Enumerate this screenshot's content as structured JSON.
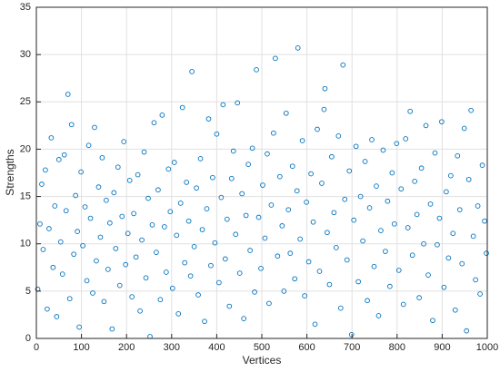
{
  "chart_data": {
    "type": "scatter",
    "xlabel": "Vertices",
    "ylabel": "Strengths",
    "xlim": [
      0,
      1000
    ],
    "ylim": [
      0,
      35
    ],
    "xticks": [
      0,
      100,
      200,
      300,
      400,
      500,
      600,
      700,
      800,
      900,
      1000
    ],
    "yticks": [
      0,
      5,
      10,
      15,
      20,
      25,
      30,
      35
    ],
    "grid": true,
    "marker": "open-circle",
    "series": [
      {
        "color": "#0072BD",
        "x": [
          3,
          8,
          12,
          15,
          20,
          24,
          28,
          33,
          37,
          41,
          45,
          50,
          54,
          58,
          62,
          66,
          70,
          74,
          78,
          83,
          87,
          91,
          95,
          99,
          103,
          108,
          112,
          116,
          120,
          125,
          129,
          133,
          138,
          142,
          146,
          150,
          155,
          159,
          163,
          168,
          172,
          176,
          181,
          185,
          190,
          194,
          198,
          203,
          207,
          212,
          216,
          221,
          225,
          230,
          234,
          239,
          243,
          248,
          252,
          257,
          261,
          266,
          270,
          275,
          279,
          284,
          288,
          293,
          297,
          302,
          306,
          311,
          315,
          320,
          324,
          329,
          333,
          338,
          342,
          345,
          350,
          355,
          359,
          364,
          368,
          373,
          378,
          382,
          387,
          391,
          396,
          400,
          405,
          410,
          414,
          419,
          423,
          428,
          433,
          437,
          442,
          446,
          451,
          456,
          460,
          465,
          470,
          474,
          479,
          484,
          488,
          493,
          498,
          502,
          507,
          512,
          516,
          521,
          526,
          530,
          535,
          540,
          545,
          549,
          554,
          559,
          563,
          568,
          573,
          578,
          580,
          585,
          590,
          595,
          599,
          604,
          609,
          614,
          618,
          623,
          628,
          633,
          638,
          640,
          645,
          650,
          655,
          660,
          665,
          670,
          675,
          680,
          684,
          689,
          694,
          699,
          704,
          709,
          714,
          719,
          724,
          729,
          734,
          739,
          744,
          749,
          754,
          759,
          764,
          769,
          774,
          779,
          784,
          789,
          794,
          799,
          804,
          809,
          814,
          819,
          824,
          829,
          834,
          839,
          844,
          849,
          854,
          859,
          864,
          869,
          874,
          879,
          884,
          889,
          894,
          899,
          904,
          909,
          914,
          919,
          924,
          929,
          934,
          939,
          944,
          949,
          954,
          959,
          964,
          969,
          974,
          979,
          984,
          989,
          994,
          998
        ],
        "values": [
          5.2,
          12.1,
          16.3,
          9.4,
          17.8,
          3.1,
          11.6,
          21.2,
          7.5,
          14.0,
          2.3,
          18.9,
          10.2,
          6.8,
          19.4,
          13.5,
          25.8,
          4.2,
          22.6,
          8.9,
          15.1,
          11.3,
          1.2,
          17.6,
          9.8,
          13.9,
          6.1,
          20.4,
          12.7,
          4.8,
          22.3,
          8.2,
          16.0,
          10.7,
          19.1,
          3.9,
          14.6,
          7.3,
          12.2,
          1.0,
          15.4,
          9.5,
          18.1,
          5.6,
          12.9,
          20.8,
          7.8,
          11.1,
          16.7,
          4.4,
          13.2,
          8.6,
          17.3,
          2.9,
          10.4,
          19.7,
          6.4,
          14.8,
          0.2,
          12.0,
          22.8,
          9.1,
          15.7,
          4.1,
          23.6,
          11.8,
          7.0,
          17.9,
          13.4,
          5.3,
          18.6,
          10.9,
          2.6,
          14.3,
          24.4,
          8.0,
          16.5,
          12.4,
          6.6,
          28.2,
          9.7,
          15.9,
          4.6,
          19.0,
          11.5,
          1.8,
          13.7,
          23.2,
          7.7,
          17.0,
          10.1,
          21.6,
          5.9,
          14.9,
          24.7,
          8.4,
          12.6,
          3.4,
          16.9,
          19.8,
          11.0,
          24.9,
          6.9,
          15.3,
          2.1,
          13.0,
          18.4,
          9.3,
          20.1,
          4.9,
          28.4,
          12.8,
          7.4,
          16.2,
          10.6,
          19.5,
          3.7,
          14.1,
          21.7,
          29.6,
          8.7,
          17.1,
          11.9,
          5.0,
          23.8,
          13.6,
          9.0,
          18.2,
          6.3,
          15.6,
          30.7,
          10.5,
          20.9,
          4.5,
          14.4,
          8.1,
          17.4,
          12.3,
          1.5,
          22.1,
          7.1,
          16.4,
          24.2,
          26.4,
          11.2,
          5.7,
          19.2,
          13.3,
          9.6,
          21.4,
          3.2,
          28.9,
          14.7,
          8.3,
          17.7,
          0.4,
          12.5,
          20.3,
          6.0,
          15.0,
          10.3,
          18.7,
          4.0,
          13.8,
          21.0,
          7.6,
          16.1,
          2.4,
          11.4,
          19.9,
          9.2,
          14.5,
          5.5,
          17.5,
          12.1,
          20.6,
          7.2,
          15.8,
          3.6,
          21.1,
          11.7,
          24.0,
          8.8,
          16.6,
          13.1,
          4.3,
          18.0,
          10.0,
          22.5,
          6.7,
          14.2,
          1.9,
          19.6,
          9.9,
          12.7,
          22.9,
          5.4,
          15.5,
          8.5,
          17.2,
          11.1,
          3.0,
          19.3,
          13.6,
          7.9,
          22.2,
          0.8,
          16.8,
          24.1,
          10.8,
          6.2,
          14.0,
          4.7,
          18.3,
          12.4,
          9.0
        ]
      }
    ]
  }
}
